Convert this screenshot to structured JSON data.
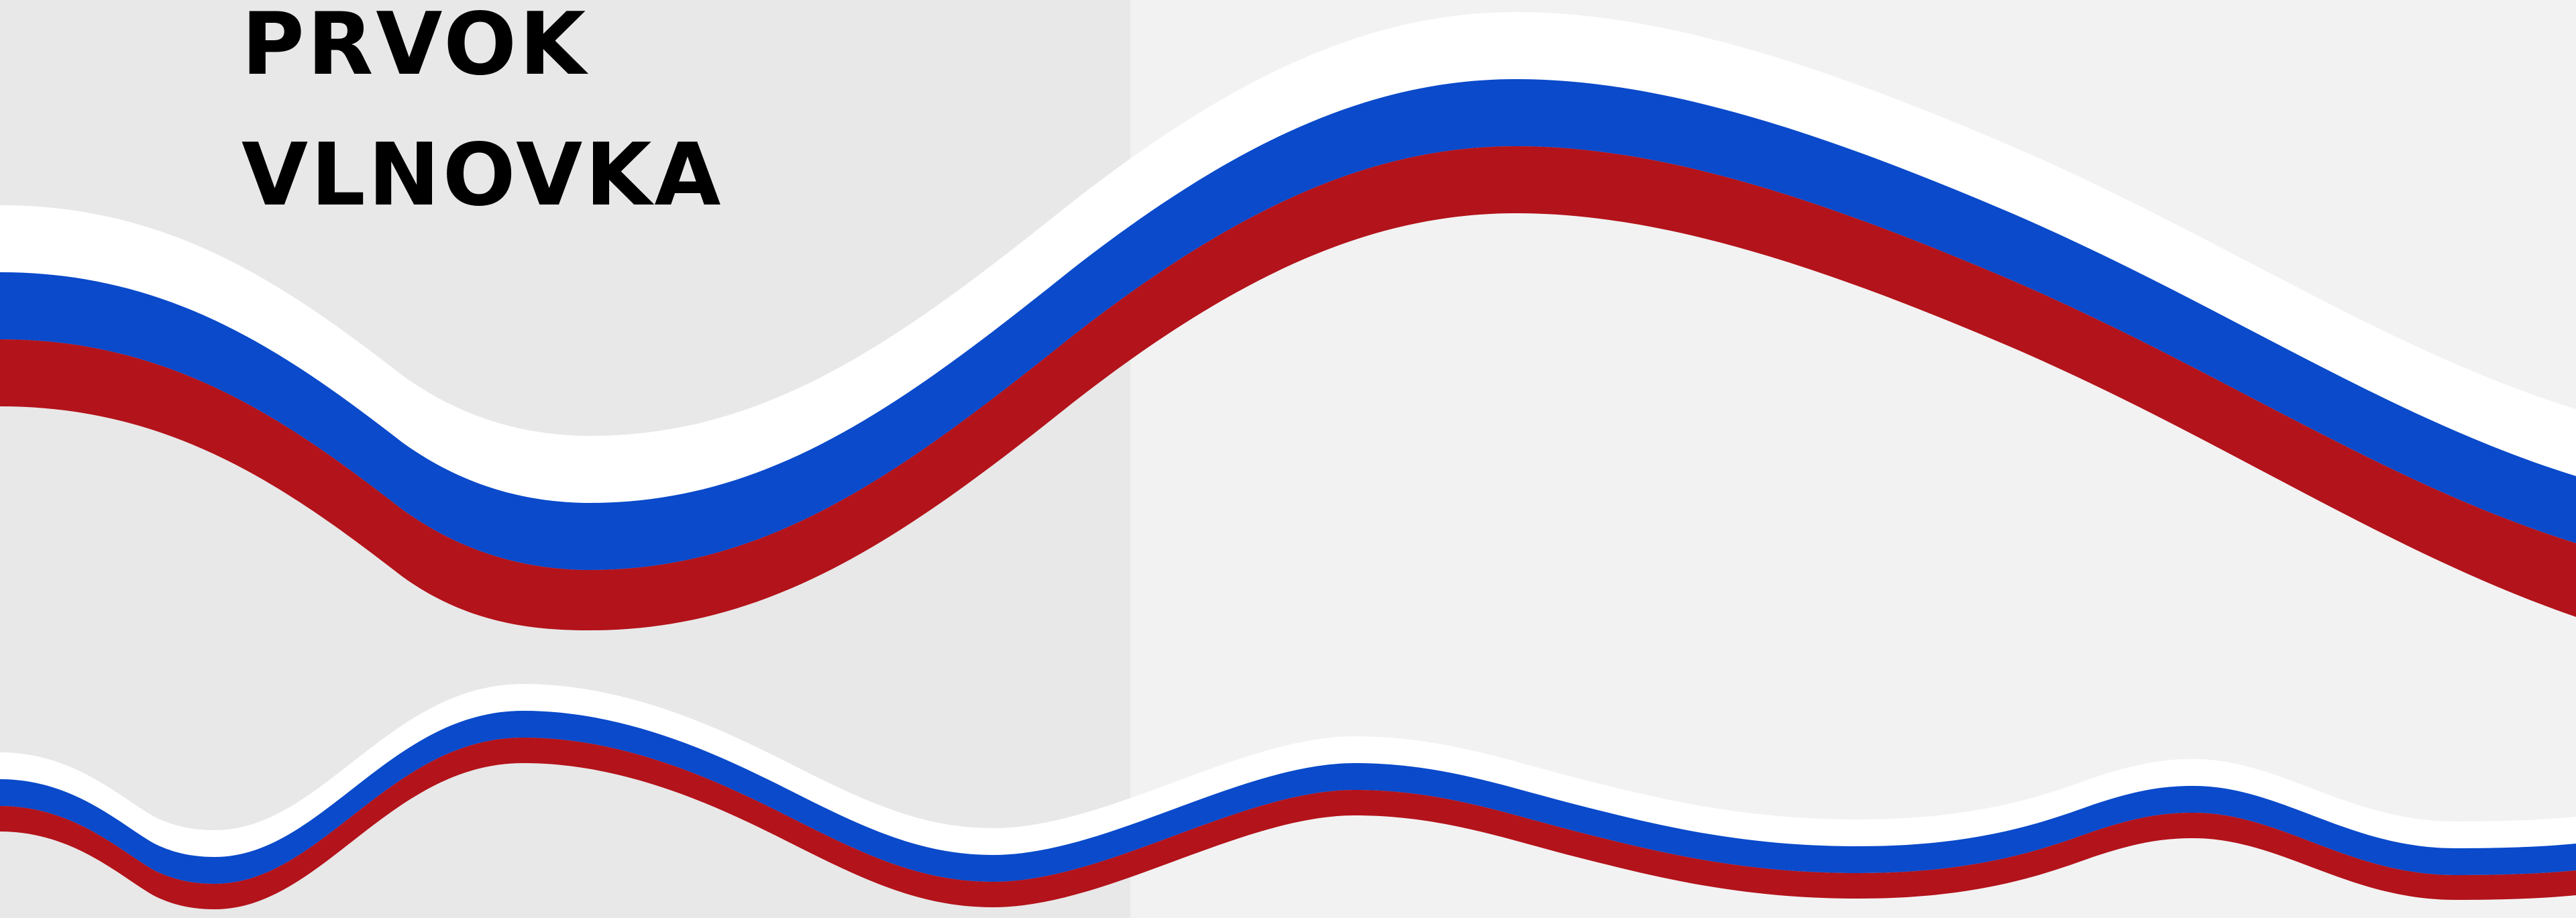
{
  "title": {
    "line1": "PRVOK",
    "line2": "VLNOVKA"
  },
  "colors": {
    "panel_left": "#e8e8e8",
    "panel_right": "#f2f2f2",
    "white": "#ffffff",
    "blue": "#0a4acb",
    "red": "#b3131b",
    "text": "#000000"
  }
}
